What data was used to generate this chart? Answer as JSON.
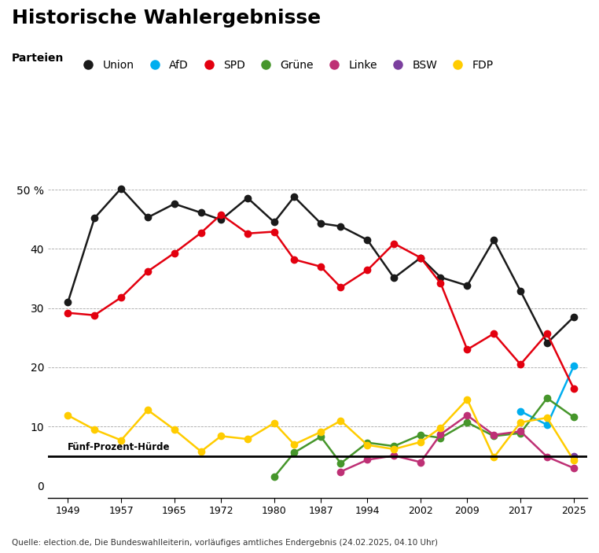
{
  "title": "Historische Wahlergebnisse",
  "legend_label": "Parteien",
  "five_percent_label": "Fünf-Prozent-Hürde",
  "source_text": "Quelle: election.de, Die Bundeswahlleiterin, vorläufiges amtliches Endergebnis (24.02.2025, 04.10 Uhr)",
  "union_years": [
    1949,
    1953,
    1957,
    1961,
    1965,
    1969,
    1972,
    1976,
    1980,
    1983,
    1987,
    1990,
    1994,
    1998,
    2002,
    2005,
    2009,
    2013,
    2017,
    2021,
    2025
  ],
  "union_vals": [
    31.0,
    45.2,
    50.2,
    45.3,
    47.6,
    46.1,
    44.9,
    48.6,
    44.5,
    48.8,
    44.3,
    43.8,
    41.5,
    35.1,
    38.5,
    35.2,
    33.8,
    41.5,
    32.9,
    24.1,
    28.5
  ],
  "spd_years": [
    1949,
    1953,
    1957,
    1961,
    1965,
    1969,
    1972,
    1976,
    1980,
    1983,
    1987,
    1990,
    1994,
    1998,
    2002,
    2005,
    2009,
    2013,
    2017,
    2021,
    2025
  ],
  "spd_vals": [
    29.2,
    28.8,
    31.8,
    36.2,
    39.3,
    42.7,
    45.8,
    42.6,
    42.9,
    38.2,
    37.0,
    33.5,
    36.4,
    40.9,
    38.5,
    34.2,
    23.0,
    25.7,
    20.5,
    25.7,
    16.4
  ],
  "afd_years": [
    2017,
    2021,
    2025
  ],
  "afd_vals": [
    12.6,
    10.3,
    20.2
  ],
  "gruene_years": [
    1980,
    1983,
    1987,
    1990,
    1994,
    1998,
    2002,
    2005,
    2009,
    2013,
    2017,
    2021,
    2025
  ],
  "gruene_vals": [
    1.5,
    5.6,
    8.3,
    3.8,
    7.3,
    6.7,
    8.6,
    8.1,
    10.7,
    8.4,
    8.9,
    14.8,
    11.6
  ],
  "linke_years": [
    1990,
    1994,
    1998,
    2002,
    2005,
    2009,
    2013,
    2017,
    2021,
    2025
  ],
  "linke_vals": [
    2.4,
    4.4,
    5.1,
    4.0,
    8.7,
    11.9,
    8.6,
    9.2,
    4.9,
    3.0
  ],
  "bsw_years": [
    2025
  ],
  "bsw_vals": [
    4.97
  ],
  "fdp_years": [
    1949,
    1953,
    1957,
    1961,
    1965,
    1969,
    1972,
    1976,
    1980,
    1983,
    1987,
    1990,
    1994,
    1998,
    2002,
    2005,
    2009,
    2013,
    2017,
    2021,
    2025
  ],
  "fdp_vals": [
    11.9,
    9.5,
    7.7,
    12.8,
    9.5,
    5.8,
    8.4,
    7.9,
    10.6,
    7.0,
    9.1,
    11.0,
    6.9,
    6.2,
    7.4,
    9.8,
    14.6,
    4.8,
    10.7,
    11.5,
    4.3
  ],
  "union_color": "#1a1a1a",
  "afd_color": "#00AEEF",
  "spd_color": "#E3000F",
  "gruene_color": "#46962b",
  "linke_color": "#BE3075",
  "bsw_color": "#7B3F9E",
  "fdp_color": "#FFCC00",
  "xtick_years": [
    1949,
    1957,
    1965,
    1972,
    1980,
    1987,
    1994,
    2002,
    2009,
    2017,
    2025
  ],
  "yticks": [
    0,
    10,
    20,
    30,
    40,
    50
  ],
  "ytick_labels": [
    "0",
    "10",
    "20",
    "30",
    "40",
    "50 %"
  ],
  "xlim": [
    1946,
    2027
  ],
  "ylim": [
    -2,
    54
  ]
}
